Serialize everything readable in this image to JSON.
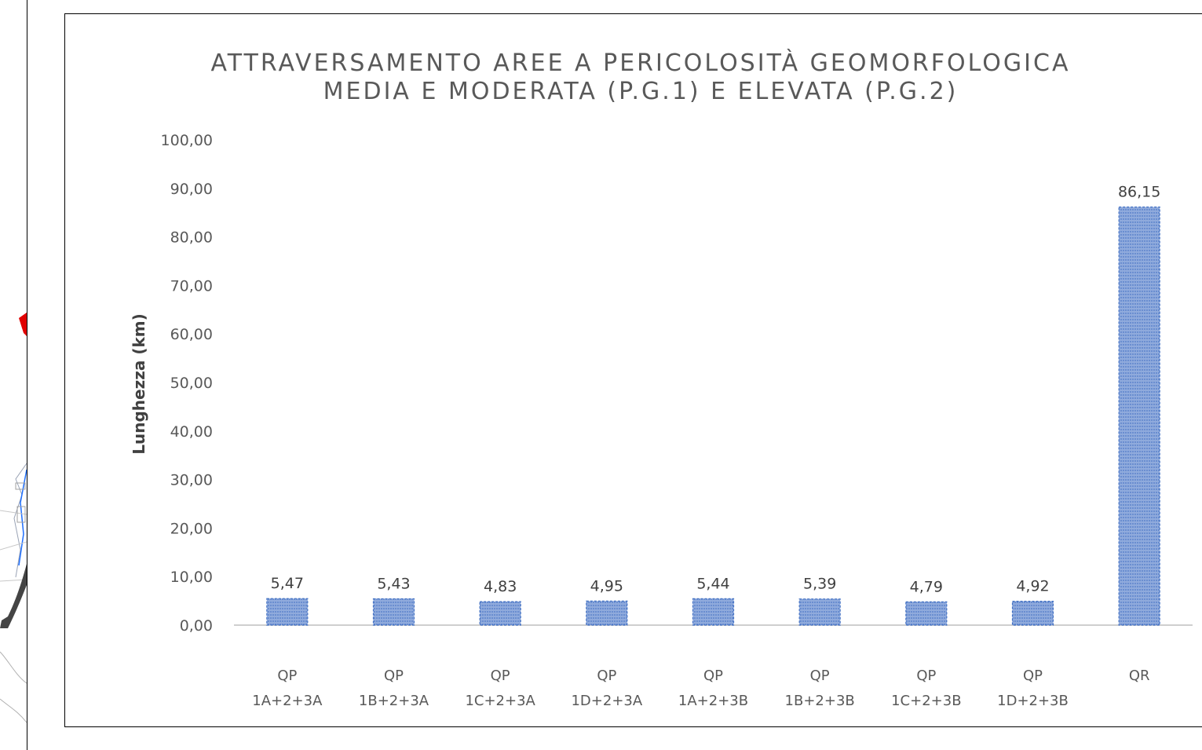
{
  "chart_data": {
    "type": "bar",
    "title_lines": [
      "ATTRAVERSAMENTO AREE A PERICOLOSITÀ GEOMORFOLOGICA",
      "MEDIA E MODERATA (P.G.1) E ELEVATA (P.G.2)"
    ],
    "xlabel": "",
    "ylabel": "Lunghezza (km)",
    "ylim": [
      0,
      100
    ],
    "y_ticks": [
      "0,00",
      "10,00",
      "20,00",
      "30,00",
      "40,00",
      "50,00",
      "60,00",
      "70,00",
      "80,00",
      "90,00",
      "100,00"
    ],
    "categories": [
      [
        "QP",
        "1A+2+3A"
      ],
      [
        "QP",
        "1B+2+3A"
      ],
      [
        "QP",
        "1C+2+3A"
      ],
      [
        "QP",
        "1D+2+3A"
      ],
      [
        "QP",
        "1A+2+3B"
      ],
      [
        "QP",
        "1B+2+3B"
      ],
      [
        "QP",
        "1C+2+3B"
      ],
      [
        "QP",
        "1D+2+3B"
      ],
      [
        "QR"
      ]
    ],
    "values": [
      5.47,
      5.43,
      4.83,
      4.95,
      5.44,
      5.39,
      4.79,
      4.92,
      86.15
    ],
    "data_labels": [
      "5,47",
      "5,43",
      "4,83",
      "4,95",
      "5,44",
      "5,39",
      "4,79",
      "4,92",
      "86,15"
    ],
    "grid": false,
    "legend": "none",
    "colors": {
      "bar_fill": "#8faadc",
      "bar_pattern": "#4472c4",
      "axis": "#bfbfbf",
      "text": "#595959"
    }
  }
}
